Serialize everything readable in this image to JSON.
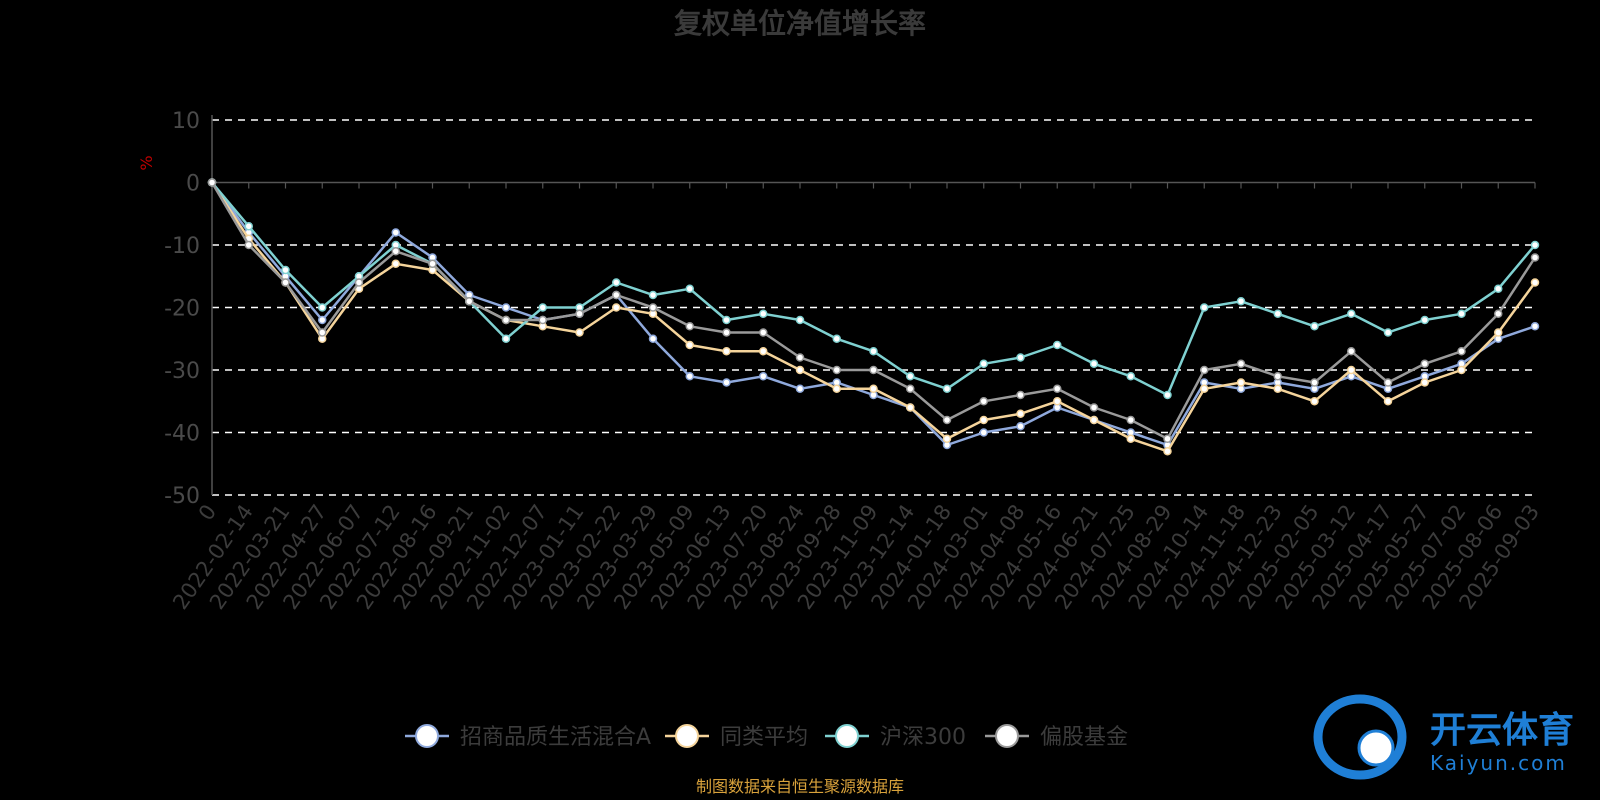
{
  "chart_data": {
    "type": "line",
    "title": "复权单位净值增长率",
    "ylabel": "%",
    "ylim": [
      -50,
      10
    ],
    "yticks": [
      10,
      0,
      -10,
      -20,
      -30,
      -40,
      -50
    ],
    "grid": true,
    "legend_position": "bottom",
    "x": [
      "0",
      "2022-02-14",
      "2022-03-21",
      "2022-04-27",
      "2022-06-07",
      "2022-07-12",
      "2022-08-16",
      "2022-09-21",
      "2022-11-02",
      "2022-12-07",
      "2023-01-11",
      "2023-02-22",
      "2023-03-29",
      "2023-05-09",
      "2023-06-13",
      "2023-07-20",
      "2023-08-24",
      "2023-09-28",
      "2023-11-09",
      "2023-12-14",
      "2024-01-18",
      "2024-03-01",
      "2024-04-08",
      "2024-05-16",
      "2024-06-21",
      "2024-07-25",
      "2024-08-29",
      "2024-10-14",
      "2024-11-18",
      "2024-12-23",
      "2025-02-05",
      "2025-03-12",
      "2025-04-17",
      "2025-05-27",
      "2025-07-02",
      "2025-08-06",
      "2025-09-03"
    ],
    "series": [
      {
        "name": "招商品质生活混合A",
        "color": "#8fa9dc",
        "values": [
          0,
          -8,
          -15,
          -22,
          -15,
          -8,
          -12,
          -18,
          -20,
          -22,
          -21,
          -18,
          -25,
          -31,
          -32,
          -31,
          -33,
          -32,
          -34,
          -36,
          -42,
          -40,
          -39,
          -36,
          -38,
          -40,
          -42,
          -32,
          -33,
          -32,
          -33,
          -31,
          -33,
          -31,
          -29,
          -25,
          -23
        ]
      },
      {
        "name": "同类平均",
        "color": "#f5d49b",
        "values": [
          0,
          -9,
          -16,
          -25,
          -17,
          -13,
          -14,
          -19,
          -22,
          -23,
          -24,
          -20,
          -21,
          -26,
          -27,
          -27,
          -30,
          -33,
          -33,
          -36,
          -41,
          -38,
          -37,
          -35,
          -38,
          -41,
          -43,
          -33,
          -32,
          -33,
          -35,
          -30,
          -35,
          -32,
          -30,
          -24,
          -16
        ]
      },
      {
        "name": "沪深300",
        "color": "#7fd1d1",
        "values": [
          0,
          -7,
          -14,
          -20,
          -15,
          -10,
          -13,
          -19,
          -25,
          -20,
          -20,
          -16,
          -18,
          -17,
          -22,
          -21,
          -22,
          -25,
          -27,
          -31,
          -33,
          -29,
          -28,
          -26,
          -29,
          -31,
          -34,
          -20,
          -19,
          -21,
          -23,
          -21,
          -24,
          -22,
          -21,
          -17,
          -10
        ]
      },
      {
        "name": "偏股基金",
        "color": "#9a9a9a",
        "values": [
          0,
          -10,
          -16,
          -24,
          -16,
          -11,
          -13,
          -19,
          -22,
          -22,
          -21,
          -18,
          -20,
          -23,
          -24,
          -24,
          -28,
          -30,
          -30,
          -33,
          -38,
          -35,
          -34,
          -33,
          -36,
          -38,
          -41,
          -30,
          -29,
          -31,
          -32,
          -27,
          -32,
          -29,
          -27,
          -21,
          -12
        ]
      }
    ]
  },
  "source_note": "制图数据来自恒生聚源数据库",
  "logo": {
    "cn": "开云体育",
    "en": "Kaiyun.com"
  }
}
